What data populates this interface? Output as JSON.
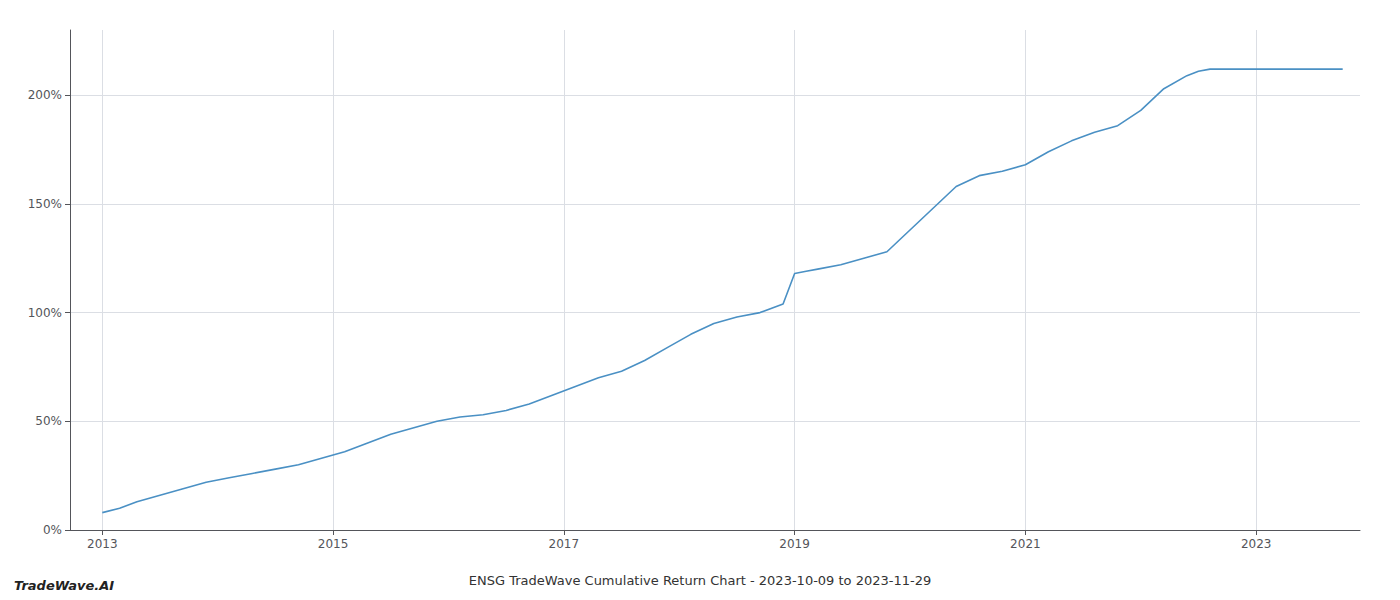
{
  "chart_data": {
    "type": "line",
    "title": "ENSG TradeWave Cumulative Return Chart - 2023-10-09 to 2023-11-29",
    "annotations": [
      "TradeWave.AI"
    ],
    "x": [
      2013.0,
      2013.15,
      2013.3,
      2013.5,
      2013.7,
      2013.9,
      2014.1,
      2014.3,
      2014.5,
      2014.7,
      2014.9,
      2015.1,
      2015.3,
      2015.5,
      2015.7,
      2015.9,
      2016.1,
      2016.3,
      2016.5,
      2016.7,
      2016.9,
      2017.1,
      2017.3,
      2017.5,
      2017.7,
      2017.9,
      2018.1,
      2018.3,
      2018.5,
      2018.7,
      2018.9,
      2019.0,
      2019.1,
      2019.2,
      2019.4,
      2019.6,
      2019.8,
      2020.0,
      2020.2,
      2020.4,
      2020.6,
      2020.8,
      2021.0,
      2021.2,
      2021.4,
      2021.6,
      2021.8,
      2022.0,
      2022.2,
      2022.4,
      2022.5,
      2022.6,
      2022.8,
      2023.0,
      2023.75
    ],
    "values": [
      8,
      10,
      13,
      16,
      19,
      22,
      24,
      26,
      28,
      30,
      33,
      36,
      40,
      44,
      47,
      50,
      52,
      53,
      55,
      58,
      62,
      66,
      70,
      73,
      78,
      84,
      90,
      95,
      98,
      100,
      104,
      118,
      119,
      120,
      122,
      125,
      128,
      138,
      148,
      158,
      163,
      165,
      168,
      174,
      179,
      183,
      186,
      193,
      203,
      209,
      211,
      212,
      212,
      212,
      212
    ],
    "color": "#4a90c4",
    "xlim": [
      2012.72,
      2023.9
    ],
    "xticks": [
      2013,
      2015,
      2017,
      2019,
      2021,
      2023
    ],
    "ylim": [
      0,
      230
    ],
    "yticks": [
      {
        "value": 0,
        "label": "0%"
      },
      {
        "value": 50,
        "label": "50%"
      },
      {
        "value": 100,
        "label": "100%"
      },
      {
        "value": 150,
        "label": "150%"
      },
      {
        "value": 200,
        "label": "200%"
      }
    ],
    "grid": true
  }
}
